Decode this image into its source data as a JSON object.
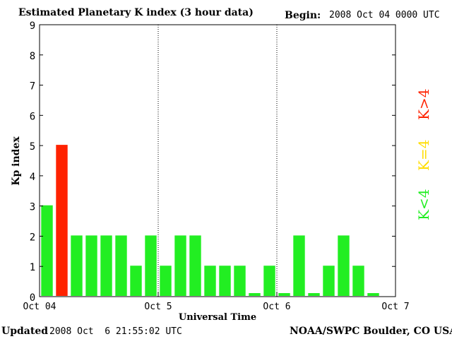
{
  "header": {
    "title": "Estimated Planetary K index (3 hour data)",
    "begin_label": "Begin:",
    "begin_value": "2008 Oct 04 0000 UTC"
  },
  "footer": {
    "updated_label": "Updated",
    "updated_value": "2008 Oct  6 21:55:02 UTC",
    "source": "NOAA/SWPC Boulder, CO USA"
  },
  "legend": {
    "items": [
      {
        "label": "K<4",
        "color": "#22ee22"
      },
      {
        "label": "K=4",
        "color": "#ffdd00"
      },
      {
        "label": "K>4",
        "color": "#ff2200"
      }
    ]
  },
  "colors": {
    "low": "#22ee22",
    "equal": "#ffdd00",
    "high": "#ff2200"
  },
  "chart_data": {
    "type": "bar",
    "xlabel": "Universal Time",
    "ylabel": "Kp index",
    "ylim": [
      0,
      9
    ],
    "yticks": [
      0,
      1,
      2,
      3,
      4,
      5,
      6,
      7,
      8,
      9
    ],
    "xlim": [
      "2008-10-04T00:00Z",
      "2008-10-07T00:00Z"
    ],
    "xticks": [
      {
        "label": "Oct 04",
        "at": "2008-10-04T00:00Z"
      },
      {
        "label": "Oct 5",
        "at": "2008-10-05T00:00Z"
      },
      {
        "label": "Oct 6",
        "at": "2008-10-06T00:00Z"
      },
      {
        "label": "Oct 7",
        "at": "2008-10-07T00:00Z"
      }
    ],
    "day_separators": [
      "2008-10-05T00:00Z",
      "2008-10-06T00:00Z"
    ],
    "interval": "3 hour",
    "values": [
      3,
      5,
      2,
      2,
      2,
      2,
      1,
      2,
      1,
      2,
      2,
      1,
      1,
      1,
      0,
      1,
      0,
      2,
      0,
      1,
      2,
      1,
      0
    ]
  }
}
